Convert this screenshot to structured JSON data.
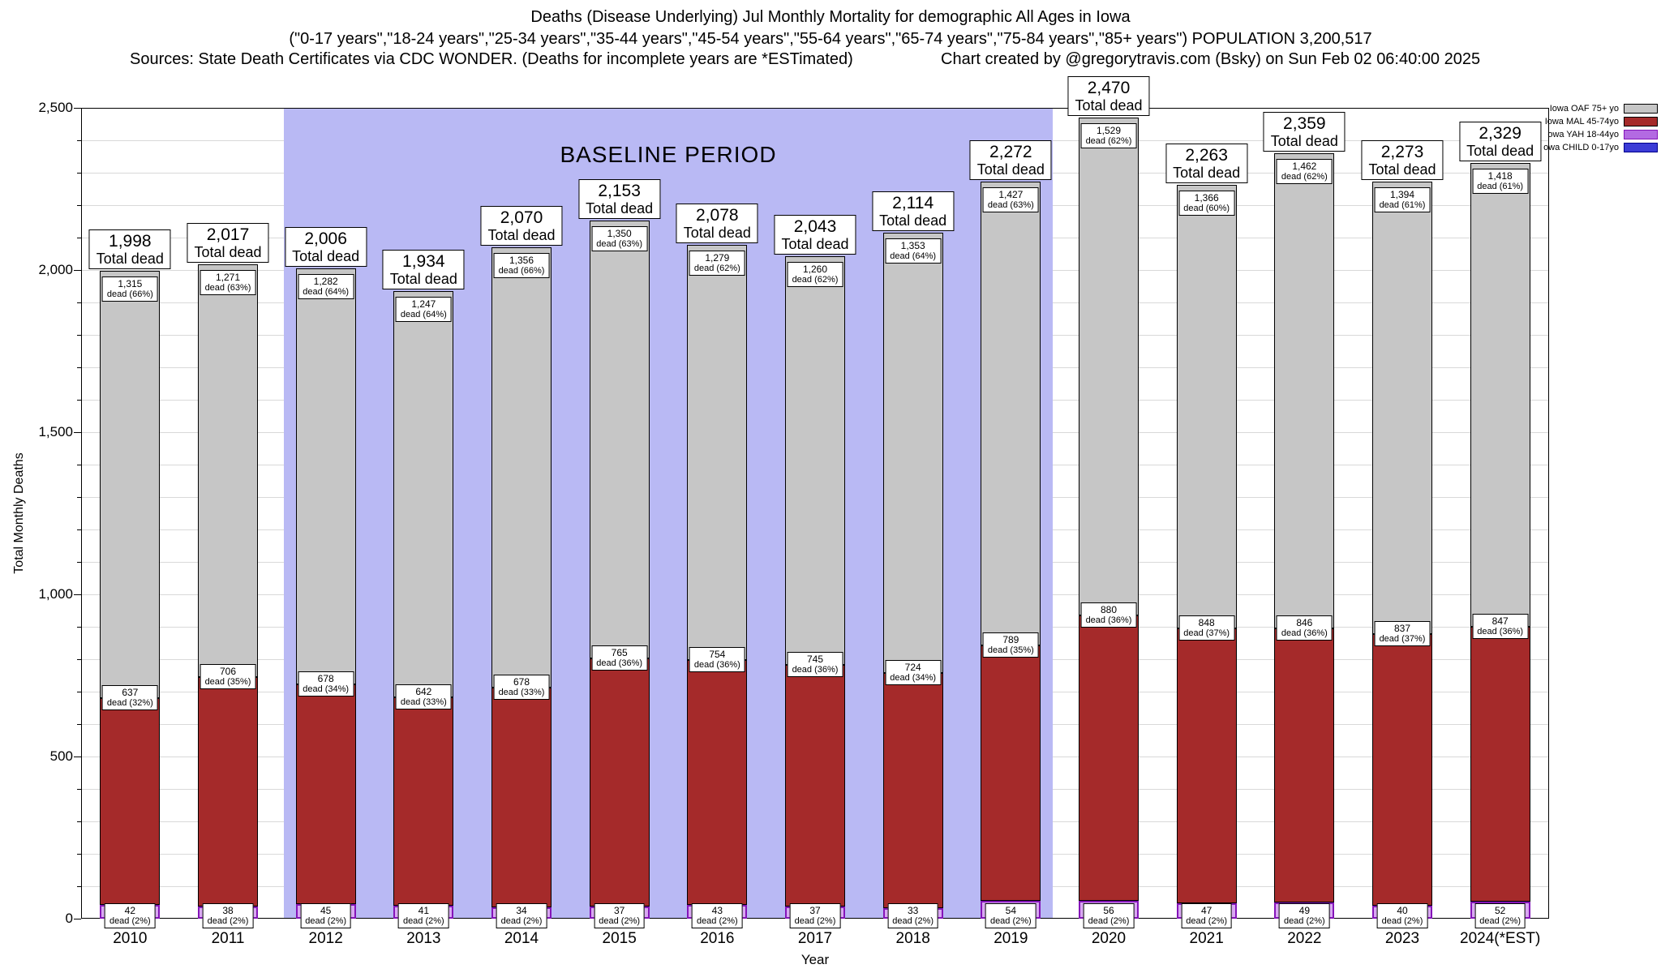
{
  "title": {
    "line1": "Deaths (Disease Underlying) Jul Monthly Mortality for demographic All Ages in Iowa",
    "line2": "(\"0-17 years\",\"18-24 years\",\"25-34 years\",\"35-44 years\",\"45-54 years\",\"55-64 years\",\"65-74 years\",\"75-84 years\",\"85+ years\") POPULATION 3,200,517",
    "line3_left": "Sources: State Death Certificates via CDC WONDER. (Deaths for incomplete years are *ESTimated)",
    "line3_right": "Chart created by @gregorytravis.com (Bsky) on Sun Feb 02 06:40:00 2025"
  },
  "baseline_label": "BASELINE PERIOD",
  "axes": {
    "ylabel": "Total Monthly Deaths",
    "xlabel": "Year",
    "yticks": [
      "0",
      "500",
      "1,000",
      "1,500",
      "2,000",
      "2,500"
    ]
  },
  "labels": {
    "total_caption": "Total dead",
    "dead_caption_template": "dead ({p}%)"
  },
  "legend": [
    {
      "label": "Iowa OAF 75+ yo",
      "color": "#c6c6c6",
      "border": "#000000"
    },
    {
      "label": "Iowa MAL 45-74yo",
      "color": "#a52a2a",
      "border": "#000000"
    },
    {
      "label": "owa YAH 18-44yo",
      "color": "#b36ae2",
      "border": "#8415b8"
    },
    {
      "label": "owa CHILD 0-17yo",
      "color": "#3b3bd6",
      "border": "#00008b"
    }
  ],
  "chart_data": {
    "type": "bar",
    "stacked": true,
    "title": "Deaths (Disease Underlying) Jul Monthly Mortality for demographic All Ages in Iowa",
    "xlabel": "Year",
    "ylabel": "Total Monthly Deaths",
    "ylim": [
      0,
      2500
    ],
    "grid": true,
    "legend_position": "top-right",
    "baseline_period": {
      "label": "BASELINE PERIOD",
      "start_year": "2012",
      "end_year": "2019"
    },
    "categories": [
      "2010",
      "2011",
      "2012",
      "2013",
      "2014",
      "2015",
      "2016",
      "2017",
      "2018",
      "2019",
      "2020",
      "2021",
      "2022",
      "2023",
      "2024(*EST)"
    ],
    "totals": [
      1998,
      2017,
      2006,
      1934,
      2070,
      2153,
      2078,
      2043,
      2114,
      2272,
      2470,
      2263,
      2359,
      2273,
      2329
    ],
    "series": [
      {
        "name": "Iowa OAF 75+ yo",
        "color": "#c6c6c6",
        "values": [
          1315,
          1271,
          1282,
          1247,
          1356,
          1350,
          1279,
          1260,
          1353,
          1427,
          1529,
          1366,
          1462,
          1394,
          1418
        ],
        "percent": [
          66,
          63,
          64,
          64,
          66,
          63,
          62,
          62,
          64,
          63,
          62,
          60,
          62,
          61,
          61
        ]
      },
      {
        "name": "Iowa MAL 45-74yo",
        "color": "#a52a2a",
        "values": [
          637,
          706,
          678,
          642,
          678,
          765,
          754,
          745,
          724,
          789,
          880,
          848,
          846,
          837,
          847
        ],
        "percent": [
          32,
          35,
          34,
          33,
          33,
          36,
          36,
          36,
          34,
          35,
          36,
          37,
          36,
          37,
          36
        ]
      },
      {
        "name": "owa YAH 18-44yo",
        "color": "#d9a7f2",
        "values": [
          42,
          38,
          45,
          41,
          34,
          37,
          43,
          37,
          33,
          54,
          56,
          47,
          49,
          40,
          52
        ],
        "percent": [
          2,
          2,
          2,
          2,
          2,
          2,
          2,
          2,
          2,
          2,
          2,
          2,
          2,
          2,
          2
        ]
      },
      {
        "name": "owa CHILD 0-17yo",
        "color": "#3b3bd6"
      }
    ]
  }
}
